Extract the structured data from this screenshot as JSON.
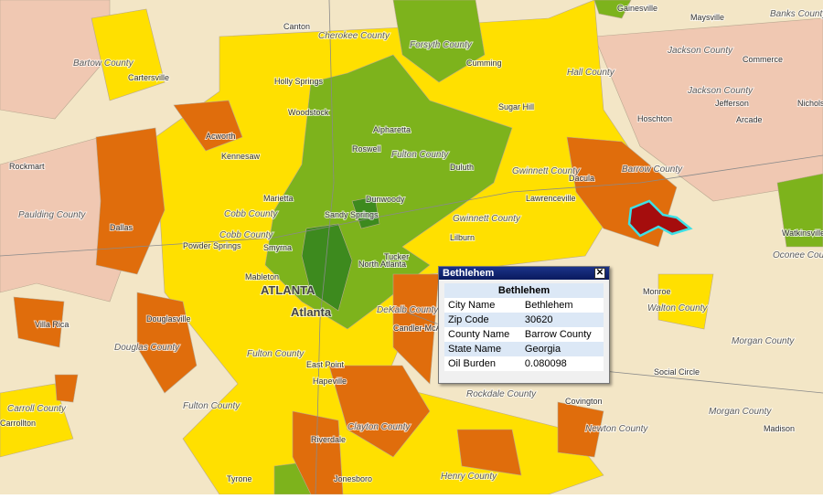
{
  "map": {
    "labels": [
      "Canton",
      "Cherokee County",
      "Forsyth County",
      "Gainesville",
      "Hall County",
      "Maysville",
      "Banks County",
      "Commerce",
      "Jackson County",
      "Jackson County",
      "Jefferson",
      "Arcade",
      "Nicholson",
      "Bartow County",
      "Cartersville",
      "Holly Springs",
      "Cumming",
      "Woodstock",
      "Sugar Hill",
      "Hoschton",
      "Alpharetta",
      "Roswell",
      "Fulton County",
      "Duluth",
      "Acworth",
      "Kennesaw",
      "Rockmart",
      "Gwinnett County",
      "Dacula",
      "Barrow County",
      "Paulding County",
      "Marietta",
      "Cobb County",
      "Dunwoody",
      "Sandy Springs",
      "Lawrenceville",
      "Gwinnett County",
      "Dallas",
      "Powder Springs",
      "Smyrna",
      "Cobb County",
      "Lilburn",
      "North Atlanta",
      "Tucker",
      "Mableton",
      "Watkinsville",
      "Oconee County",
      "ATLANTA",
      "Atlanta",
      "Monroe",
      "Walton County",
      "Villa Rica",
      "Douglasville",
      "DeKalb County",
      "Candler-McAfee",
      "Douglas County",
      "Fulton County",
      "Morgan County",
      "East Point",
      "Hapeville",
      "Social Circle",
      "Carroll County",
      "Carrollton",
      "Fulton County",
      "Rockdale County",
      "Covington",
      "Newton County",
      "Morgan County",
      "Madison",
      "Clayton County",
      "Riverdale",
      "Henry County",
      "Tyrone",
      "Jonesboro"
    ]
  },
  "popup": {
    "title": "Bethlehem",
    "header": "Bethlehem",
    "rows": [
      [
        "City Name",
        "Bethlehem"
      ],
      [
        "Zip Code",
        30620
      ],
      [
        "County Name",
        "Barrow County"
      ],
      [
        "State Name",
        "Georgia"
      ],
      [
        "Oil Burden",
        0.080098
      ]
    ]
  }
}
